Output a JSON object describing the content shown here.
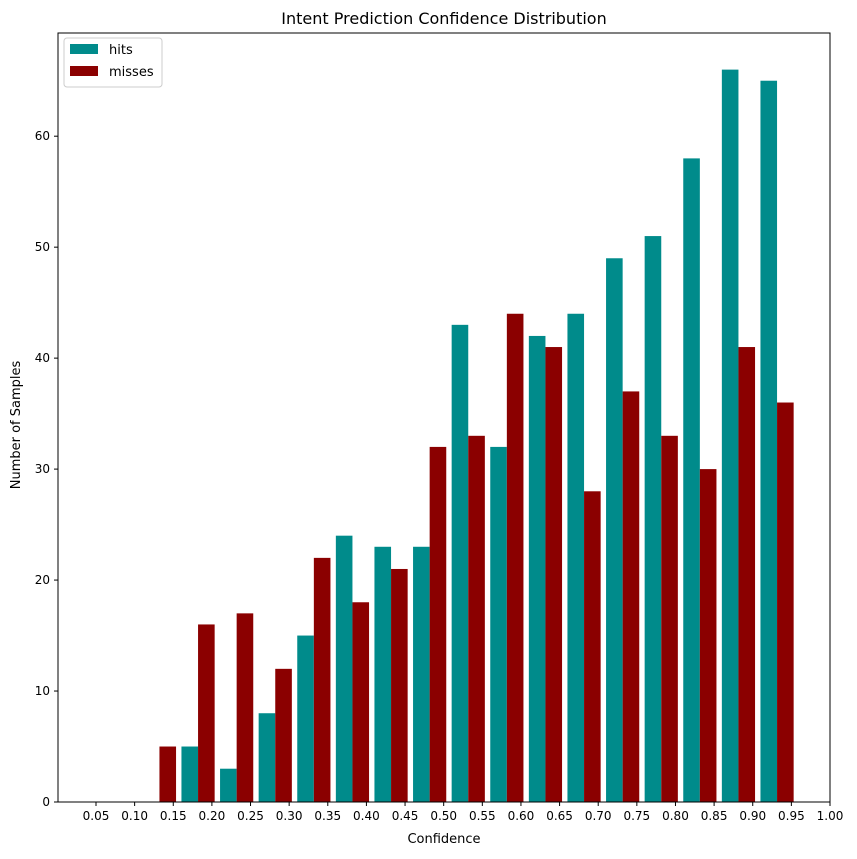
{
  "chart_data": {
    "type": "bar",
    "title": "Intent Prediction Confidence Distribution",
    "xlabel": "Confidence",
    "ylabel": "Number of Samples",
    "x_tick_labels": [
      "0.05",
      "0.10",
      "0.15",
      "0.20",
      "0.25",
      "0.30",
      "0.35",
      "0.40",
      "0.45",
      "0.50",
      "0.55",
      "0.60",
      "0.65",
      "0.70",
      "0.75",
      "0.80",
      "0.85",
      "0.90",
      "0.95",
      "1.00"
    ],
    "y_tick_labels": [
      "0",
      "10",
      "20",
      "30",
      "40",
      "50",
      "60"
    ],
    "ylim": [
      0,
      69.3
    ],
    "legend_position": "top-left",
    "grid": false,
    "series": [
      {
        "name": "hits",
        "color": "#008b8b",
        "values": [
          0,
          0,
          0,
          5,
          3,
          8,
          15,
          24,
          23,
          23,
          43,
          32,
          42,
          44,
          49,
          51,
          58,
          66,
          65
        ]
      },
      {
        "name": "misses",
        "color": "#8b0000",
        "values": [
          0,
          0,
          5,
          16,
          17,
          12,
          22,
          18,
          21,
          32,
          33,
          44,
          41,
          28,
          37,
          33,
          30,
          41,
          36
        ]
      }
    ]
  }
}
